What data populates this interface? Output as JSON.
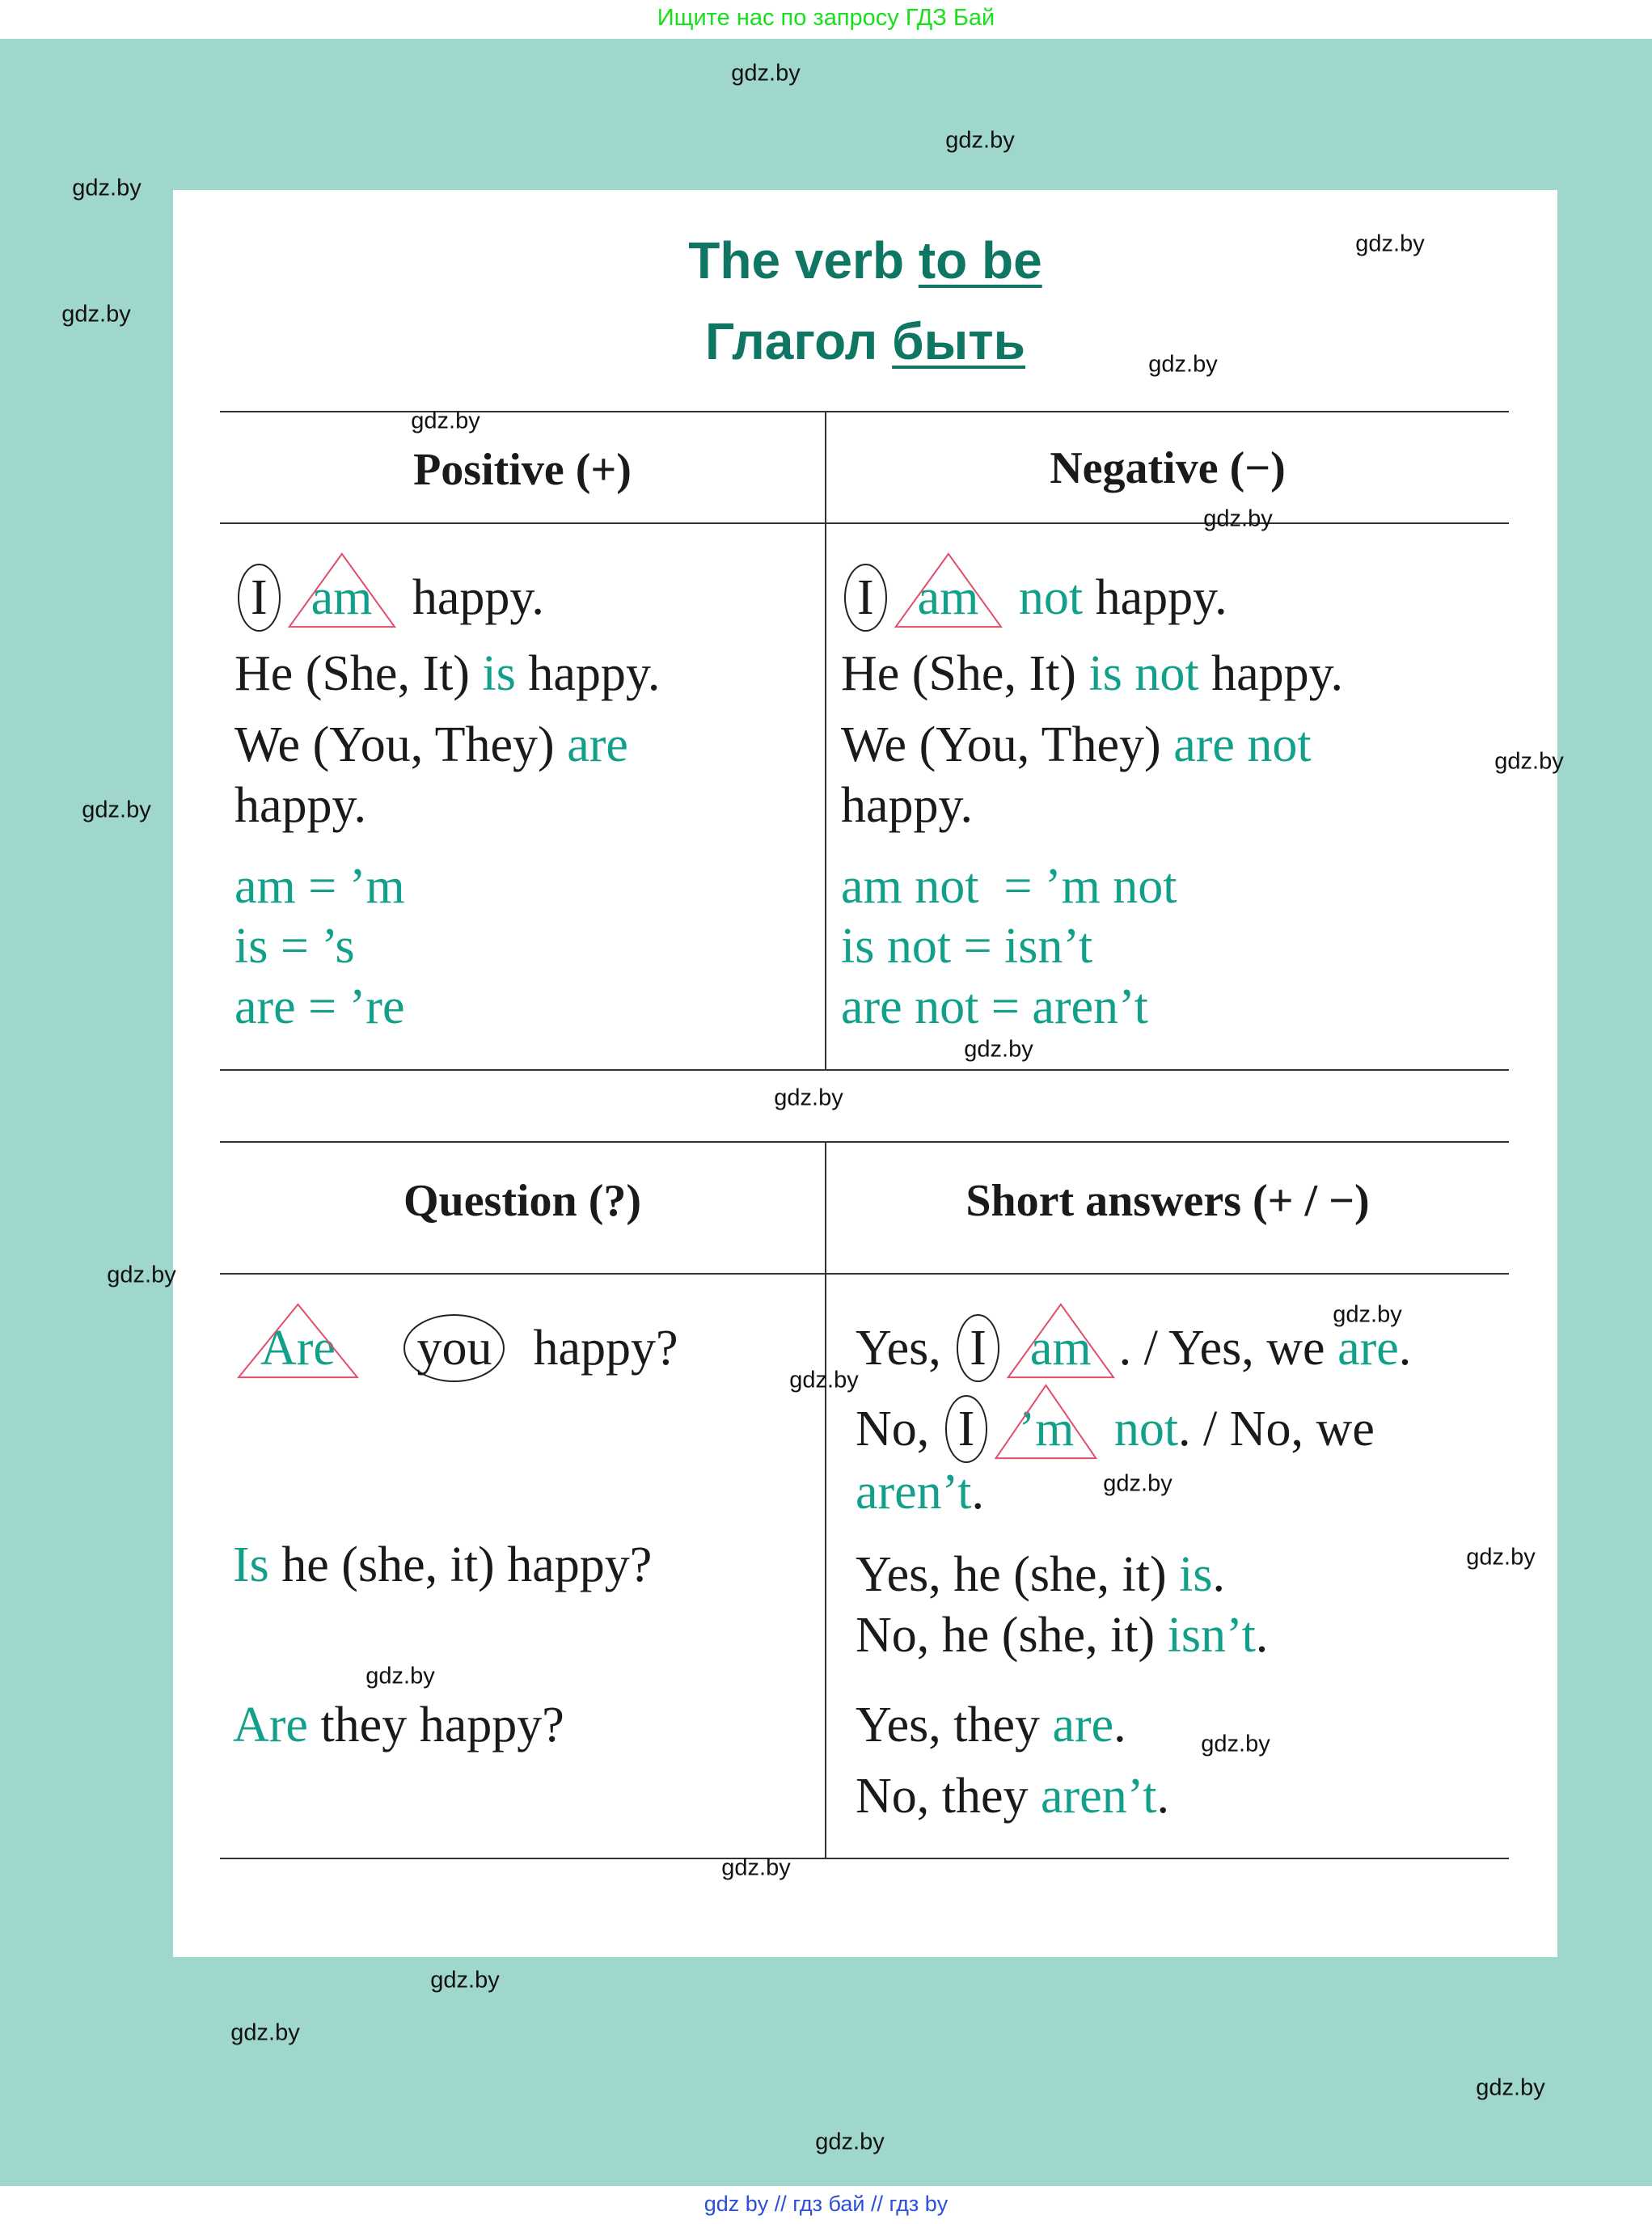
{
  "top_banner": "Ищите нас по запросу ГДЗ Бай",
  "bottom_banner": "gdz by  //  гдз бай  //  гдз by",
  "watermark": "gdz.by",
  "colors": {
    "background": "#9fd7cd",
    "title": "#0e7663",
    "accent": "#13a08a",
    "triangle": "#e0506a",
    "text": "#1a1a1a"
  },
  "title": {
    "line1_plain": "The verb ",
    "line1_underlined": "to be",
    "line2_plain": "Глагол ",
    "line2_underlined": "быть"
  },
  "headers": {
    "positive": "Positive (+)",
    "negative": "Negative (−)",
    "question": "Question (?)",
    "short_answers": "Short answers (+ / −)"
  },
  "positive": [
    [
      {
        "t": "I",
        "c": "k",
        "s": "circle"
      },
      {
        "t": "am",
        "c": "g",
        "s": "tri"
      },
      {
        "t": " happy.",
        "c": "k"
      }
    ],
    [
      {
        "t": "He (She, It) ",
        "c": "k"
      },
      {
        "t": "is",
        "c": "g"
      },
      {
        "t": " happy.",
        "c": "k"
      }
    ],
    [
      {
        "t": "We (You, They) ",
        "c": "k"
      },
      {
        "t": "are",
        "c": "g"
      }
    ],
    [
      {
        "t": "happy.",
        "c": "k"
      }
    ],
    [
      {
        "t": "am = ’m",
        "c": "g"
      }
    ],
    [
      {
        "t": "is = ’s",
        "c": "g"
      }
    ],
    [
      {
        "t": "are = ’re",
        "c": "g"
      }
    ]
  ],
  "negative": [
    [
      {
        "t": "I",
        "c": "k",
        "s": "circle"
      },
      {
        "t": "am",
        "c": "g",
        "s": "tri"
      },
      {
        "t": " not",
        "c": "g"
      },
      {
        "t": " happy.",
        "c": "k"
      }
    ],
    [
      {
        "t": "He (She, It) ",
        "c": "k"
      },
      {
        "t": "is not",
        "c": "g"
      },
      {
        "t": " happy.",
        "c": "k"
      }
    ],
    [
      {
        "t": "We (You, They) ",
        "c": "k"
      },
      {
        "t": "are not",
        "c": "g"
      }
    ],
    [
      {
        "t": "happy.",
        "c": "k"
      }
    ],
    [
      {
        "t": "am not  = ’m not",
        "c": "g"
      }
    ],
    [
      {
        "t": "is not = isn’t",
        "c": "g"
      }
    ],
    [
      {
        "t": "are not = aren’t",
        "c": "g"
      }
    ]
  ],
  "question": [
    [
      {
        "t": "Are",
        "c": "g",
        "s": "tri"
      },
      {
        "t": "   ",
        "c": "k"
      },
      {
        "t": "you",
        "c": "k",
        "s": "circle"
      },
      {
        "t": "  happy?",
        "c": "k"
      }
    ],
    [
      {
        "t": "Is",
        "c": "g"
      },
      {
        "t": " he (she, it) happy?",
        "c": "k"
      }
    ],
    [
      {
        "t": "Are",
        "c": "g"
      },
      {
        "t": " they happy?",
        "c": "k"
      }
    ]
  ],
  "short_answers": [
    [
      {
        "t": "Yes, ",
        "c": "k"
      },
      {
        "t": "I",
        "c": "k",
        "s": "circle"
      },
      {
        "t": "am",
        "c": "g",
        "s": "tri"
      },
      {
        "t": ". / Yes, we ",
        "c": "k"
      },
      {
        "t": "are",
        "c": "g"
      },
      {
        "t": ".",
        "c": "k"
      }
    ],
    [
      {
        "t": "No, ",
        "c": "k"
      },
      {
        "t": "I",
        "c": "k",
        "s": "circle"
      },
      {
        "t": "’m",
        "c": "g",
        "s": "tri"
      },
      {
        "t": " not",
        "c": "g"
      },
      {
        "t": ". / No, we",
        "c": "k"
      }
    ],
    [
      {
        "t": "aren’t",
        "c": "g"
      },
      {
        "t": ".",
        "c": "k"
      }
    ],
    [
      {
        "t": "Yes, he (she, it) ",
        "c": "k"
      },
      {
        "t": "is",
        "c": "g"
      },
      {
        "t": ".",
        "c": "k"
      }
    ],
    [
      {
        "t": "No, he (she, it) ",
        "c": "k"
      },
      {
        "t": "isn’t",
        "c": "g"
      },
      {
        "t": ".",
        "c": "k"
      }
    ],
    [
      {
        "t": "Yes, they ",
        "c": "k"
      },
      {
        "t": "are",
        "c": "g"
      },
      {
        "t": ".",
        "c": "k"
      }
    ],
    [
      {
        "t": "No, they ",
        "c": "k"
      },
      {
        "t": "aren’t",
        "c": "g"
      },
      {
        "t": ".",
        "c": "k"
      }
    ]
  ]
}
